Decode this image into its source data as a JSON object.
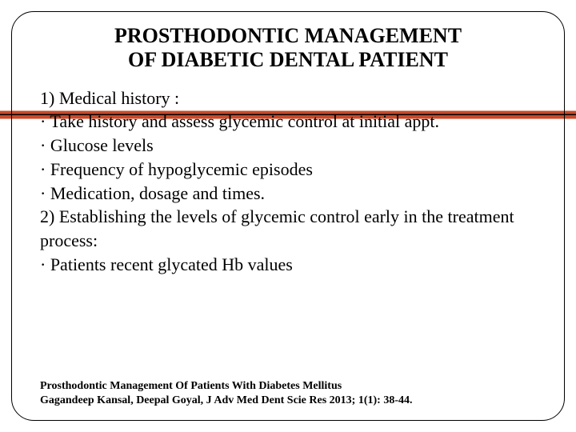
{
  "title_line1": "PROSTHODONTIC MANAGEMENT",
  "title_line2": "OF DIABETIC DENTAL PATIENT",
  "body": {
    "p1": "1) Medical history :",
    "p2": "· Take history and assess glycemic control at initial appt.",
    "p3": "· Glucose levels",
    "p4": "· Frequency of hypoglycemic episodes",
    "p5": "· Medication, dosage and times.",
    "p6": "2) Establishing the levels of glycemic control early in the treatment process:",
    "p7": "· Patients recent glycated Hb values"
  },
  "citation": {
    "line1": "Prosthodontic Management Of Patients With Diabetes Mellitus",
    "line2": "Gagandeep Kansal, Deepal Goyal, J Adv Med Dent Scie Res 2013; 1(1): 38-44."
  },
  "colors": {
    "accent": "#c94a2a",
    "text": "#000000",
    "background": "#ffffff",
    "border": "#000000"
  }
}
